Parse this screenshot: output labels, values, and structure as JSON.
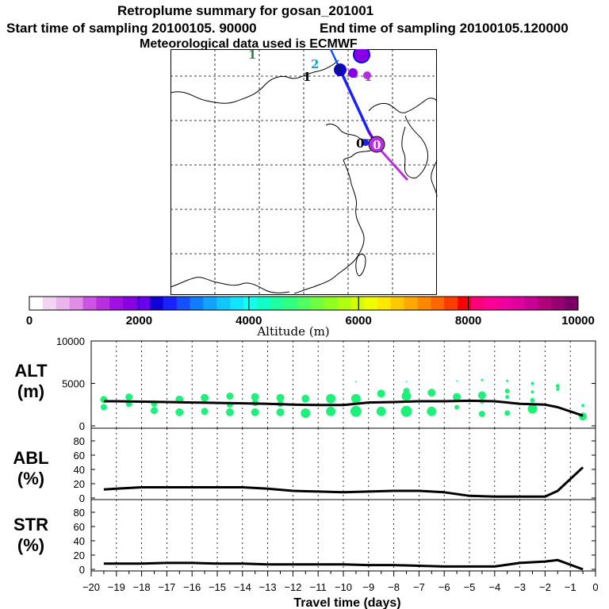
{
  "header": {
    "title": "Retroplume summary for gosan_201001",
    "start_label": "Start time of sampling 20100105. 90000",
    "end_label": "End time of sampling 20100105.120000",
    "met_label": "Meteorological data used is ECMWF"
  },
  "colorbar": {
    "title": "Altitude (m)",
    "ticks": [
      "0",
      "2000",
      "4000",
      "6000",
      "8000",
      "10000"
    ],
    "colors": [
      "#ffffff",
      "#f4d4f4",
      "#ecb4ec",
      "#e08ce8",
      "#cc55e6",
      "#b82fe0",
      "#a010e0",
      "#8a00e6",
      "#6a00ee",
      "#1000d8",
      "#1a20ff",
      "#1450ff",
      "#107cff",
      "#10a4ff",
      "#10c8ff",
      "#10e4ff",
      "#10fff0",
      "#10ffc8",
      "#20ffa0",
      "#30ff80",
      "#50ff60",
      "#70ff40",
      "#90ff20",
      "#b0ff10",
      "#d0ff00",
      "#f0ff00",
      "#ffe800",
      "#ffc800",
      "#ffa800",
      "#ff8800",
      "#ff6600",
      "#ff3c00",
      "#ff0000",
      "#ff007c",
      "#ff0096",
      "#f000a0",
      "#e000a0",
      "#c80096",
      "#b0007c",
      "#960070",
      "#7c0064"
    ]
  },
  "map": {
    "markers": [
      {
        "label": "1",
        "color": "#2a8a50"
      },
      {
        "label": "2",
        "color": "#10a0e0"
      },
      {
        "label": "1",
        "color": "#102040"
      },
      {
        "label": "1",
        "color": "#000000"
      },
      {
        "label": "1",
        "color": "#8a00e6"
      },
      {
        "label": "1",
        "color": "#b030e0"
      },
      {
        "label": "0",
        "color": "#000000"
      },
      {
        "label": "0",
        "color": "#ffffff"
      }
    ]
  },
  "chart_data": [
    {
      "type": "line",
      "id": "alt",
      "panel_label": "ALT",
      "unit_label": "(m)",
      "xlim": [
        -20,
        0
      ],
      "ylim": [
        0,
        10000
      ],
      "yticks": [
        "10000",
        "5000",
        "0"
      ],
      "x": [
        -19.5,
        -19,
        -18,
        -17,
        -16,
        -15,
        -14,
        -13,
        -12,
        -11,
        -10,
        -9,
        -8,
        -7,
        -6,
        -5,
        -4,
        -3,
        -2,
        -1.5,
        -0.5
      ],
      "values": [
        2900,
        2900,
        2850,
        2800,
        2750,
        2700,
        2650,
        2600,
        2500,
        2450,
        2450,
        2750,
        2800,
        2900,
        2900,
        2950,
        2900,
        2600,
        2500,
        2200,
        1200
      ],
      "plumes": [
        {
          "x": -19.5,
          "alt": 3100,
          "r": 4.5
        },
        {
          "x": -19.5,
          "alt": 2200,
          "r": 4
        },
        {
          "x": -18.5,
          "alt": 3400,
          "r": 4.5
        },
        {
          "x": -18.5,
          "alt": 2600,
          "r": 4
        },
        {
          "x": -17.5,
          "alt": 2600,
          "r": 4
        },
        {
          "x": -17.5,
          "alt": 1800,
          "r": 4.5
        },
        {
          "x": -16.5,
          "alt": 3100,
          "r": 5
        },
        {
          "x": -16.5,
          "alt": 1600,
          "r": 5
        },
        {
          "x": -15.5,
          "alt": 3300,
          "r": 5
        },
        {
          "x": -15.5,
          "alt": 1700,
          "r": 4.5
        },
        {
          "x": -14.5,
          "alt": 3500,
          "r": 4.5
        },
        {
          "x": -14.5,
          "alt": 2500,
          "r": 4
        },
        {
          "x": -14.5,
          "alt": 1600,
          "r": 5
        },
        {
          "x": -13.5,
          "alt": 3400,
          "r": 5
        },
        {
          "x": -13.5,
          "alt": 2700,
          "r": 4
        },
        {
          "x": -13.5,
          "alt": 1600,
          "r": 5
        },
        {
          "x": -12.5,
          "alt": 3300,
          "r": 5
        },
        {
          "x": -12.5,
          "alt": 2600,
          "r": 4
        },
        {
          "x": -12.5,
          "alt": 1600,
          "r": 5
        },
        {
          "x": -11.5,
          "alt": 3200,
          "r": 5
        },
        {
          "x": -11.5,
          "alt": 1500,
          "r": 6
        },
        {
          "x": -10.5,
          "alt": 3200,
          "r": 6
        },
        {
          "x": -10.5,
          "alt": 1700,
          "r": 6
        },
        {
          "x": -9.5,
          "alt": 5200,
          "r": 1
        },
        {
          "x": -9.5,
          "alt": 3200,
          "r": 6
        },
        {
          "x": -9.5,
          "alt": 1700,
          "r": 7
        },
        {
          "x": -8.5,
          "alt": 3800,
          "r": 5
        },
        {
          "x": -8.5,
          "alt": 1700,
          "r": 6
        },
        {
          "x": -7.5,
          "alt": 5200,
          "r": 1
        },
        {
          "x": -7.5,
          "alt": 4100,
          "r": 4
        },
        {
          "x": -7.5,
          "alt": 3500,
          "r": 6
        },
        {
          "x": -7.5,
          "alt": 1700,
          "r": 7
        },
        {
          "x": -6.5,
          "alt": 3900,
          "r": 5
        },
        {
          "x": -6.5,
          "alt": 1700,
          "r": 6
        },
        {
          "x": -5.5,
          "alt": 5300,
          "r": 1
        },
        {
          "x": -5.5,
          "alt": 3400,
          "r": 5
        },
        {
          "x": -5.5,
          "alt": 2200,
          "r": 3
        },
        {
          "x": -4.5,
          "alt": 5400,
          "r": 1.5
        },
        {
          "x": -4.5,
          "alt": 3600,
          "r": 5
        },
        {
          "x": -4.5,
          "alt": 2900,
          "r": 3
        },
        {
          "x": -4.5,
          "alt": 1400,
          "r": 4
        },
        {
          "x": -3.5,
          "alt": 5300,
          "r": 1.5
        },
        {
          "x": -3.5,
          "alt": 4100,
          "r": 3
        },
        {
          "x": -3.5,
          "alt": 3400,
          "r": 2.5
        },
        {
          "x": -3.5,
          "alt": 1500,
          "r": 3.5
        },
        {
          "x": -2.5,
          "alt": 5000,
          "r": 2
        },
        {
          "x": -2.5,
          "alt": 4000,
          "r": 2
        },
        {
          "x": -2.5,
          "alt": 3000,
          "r": 3
        },
        {
          "x": -2.5,
          "alt": 2000,
          "r": 6
        },
        {
          "x": -1.5,
          "alt": 4700,
          "r": 2.5
        },
        {
          "x": -1.5,
          "alt": 4300,
          "r": 2
        },
        {
          "x": -0.5,
          "alt": 2400,
          "r": 2
        },
        {
          "x": -0.5,
          "alt": 1100,
          "r": 5
        }
      ]
    },
    {
      "type": "line",
      "id": "abl",
      "panel_label": "ABL",
      "unit_label": "(%)",
      "xlim": [
        -20,
        0
      ],
      "ylim": [
        0,
        100
      ],
      "yticks": [
        "80",
        "60",
        "40",
        "20",
        "0"
      ],
      "x": [
        -19.5,
        -19,
        -18,
        -17,
        -16,
        -15,
        -14,
        -13,
        -12,
        -11,
        -10,
        -9,
        -8,
        -7,
        -6,
        -5,
        -4,
        -3,
        -2,
        -1.5,
        -0.5
      ],
      "values": [
        12,
        13,
        15,
        15,
        15,
        15,
        15,
        13,
        10,
        9,
        8,
        9,
        10,
        10,
        8,
        3,
        2,
        2,
        2,
        10,
        43
      ]
    },
    {
      "type": "line",
      "id": "str",
      "panel_label": "STR",
      "unit_label": "(%)",
      "xlim": [
        -20,
        0
      ],
      "ylim": [
        0,
        100
      ],
      "yticks": [
        "80",
        "60",
        "40",
        "20",
        "0"
      ],
      "x": [
        -19.5,
        -19,
        -18,
        -17,
        -16,
        -15,
        -14,
        -13,
        -12,
        -11,
        -10,
        -9,
        -8,
        -7,
        -6,
        -5,
        -4,
        -3,
        -2,
        -1.5,
        -0.5
      ],
      "values": [
        8,
        8,
        8,
        9,
        9,
        8,
        8,
        7,
        7,
        7,
        7,
        6,
        6,
        5,
        4,
        4,
        4,
        9,
        11,
        13,
        0
      ],
      "xlabel": "Travel time (days)",
      "xticks": [
        "-20",
        "-19",
        "-18",
        "-17",
        "-16",
        "-15",
        "-14",
        "-13",
        "-12",
        "-11",
        "-10",
        "-9",
        "-8",
        "-7",
        "-6",
        "-5",
        "-4",
        "-3",
        "-2",
        "-1",
        "0"
      ]
    }
  ]
}
